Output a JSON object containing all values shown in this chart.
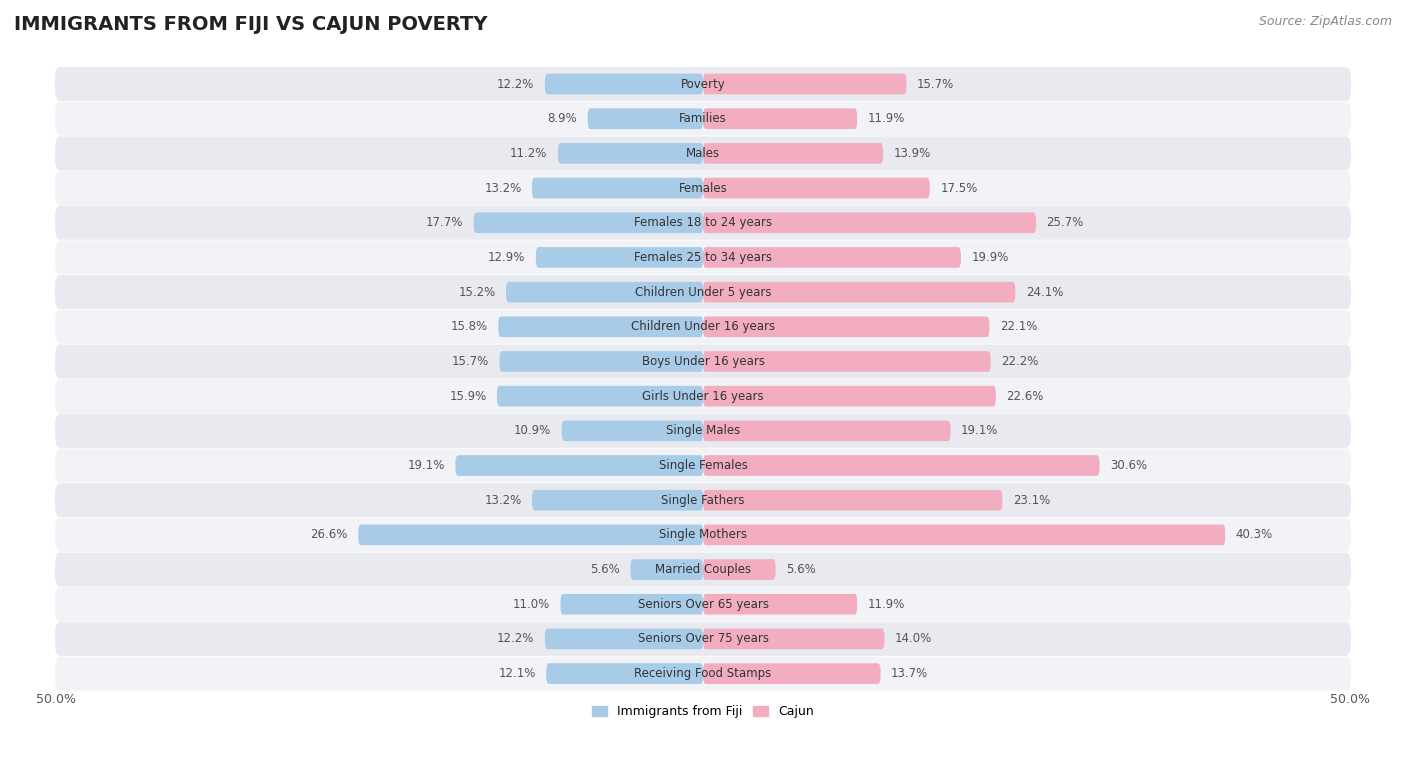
{
  "title": "IMMIGRANTS FROM FIJI VS CAJUN POVERTY",
  "source": "Source: ZipAtlas.com",
  "categories": [
    "Poverty",
    "Families",
    "Males",
    "Females",
    "Females 18 to 24 years",
    "Females 25 to 34 years",
    "Children Under 5 years",
    "Children Under 16 years",
    "Boys Under 16 years",
    "Girls Under 16 years",
    "Single Males",
    "Single Females",
    "Single Fathers",
    "Single Mothers",
    "Married Couples",
    "Seniors Over 65 years",
    "Seniors Over 75 years",
    "Receiving Food Stamps"
  ],
  "fiji_values": [
    12.2,
    8.9,
    11.2,
    13.2,
    17.7,
    12.9,
    15.2,
    15.8,
    15.7,
    15.9,
    10.9,
    19.1,
    13.2,
    26.6,
    5.6,
    11.0,
    12.2,
    12.1
  ],
  "cajun_values": [
    15.7,
    11.9,
    13.9,
    17.5,
    25.7,
    19.9,
    24.1,
    22.1,
    22.2,
    22.6,
    19.1,
    30.6,
    23.1,
    40.3,
    5.6,
    11.9,
    14.0,
    13.7
  ],
  "fiji_color": "#a8cce8",
  "cajun_color": "#f2aec0",
  "fiji_label": "Immigrants from Fiji",
  "cajun_label": "Cajun",
  "xlim": 50.0,
  "bg_color": "#ffffff",
  "row_color_odd": "#e8eaf0",
  "row_color_even": "#f2f3f7",
  "title_fontsize": 14,
  "source_fontsize": 9,
  "label_fontsize": 8.5,
  "value_fontsize": 8.5
}
